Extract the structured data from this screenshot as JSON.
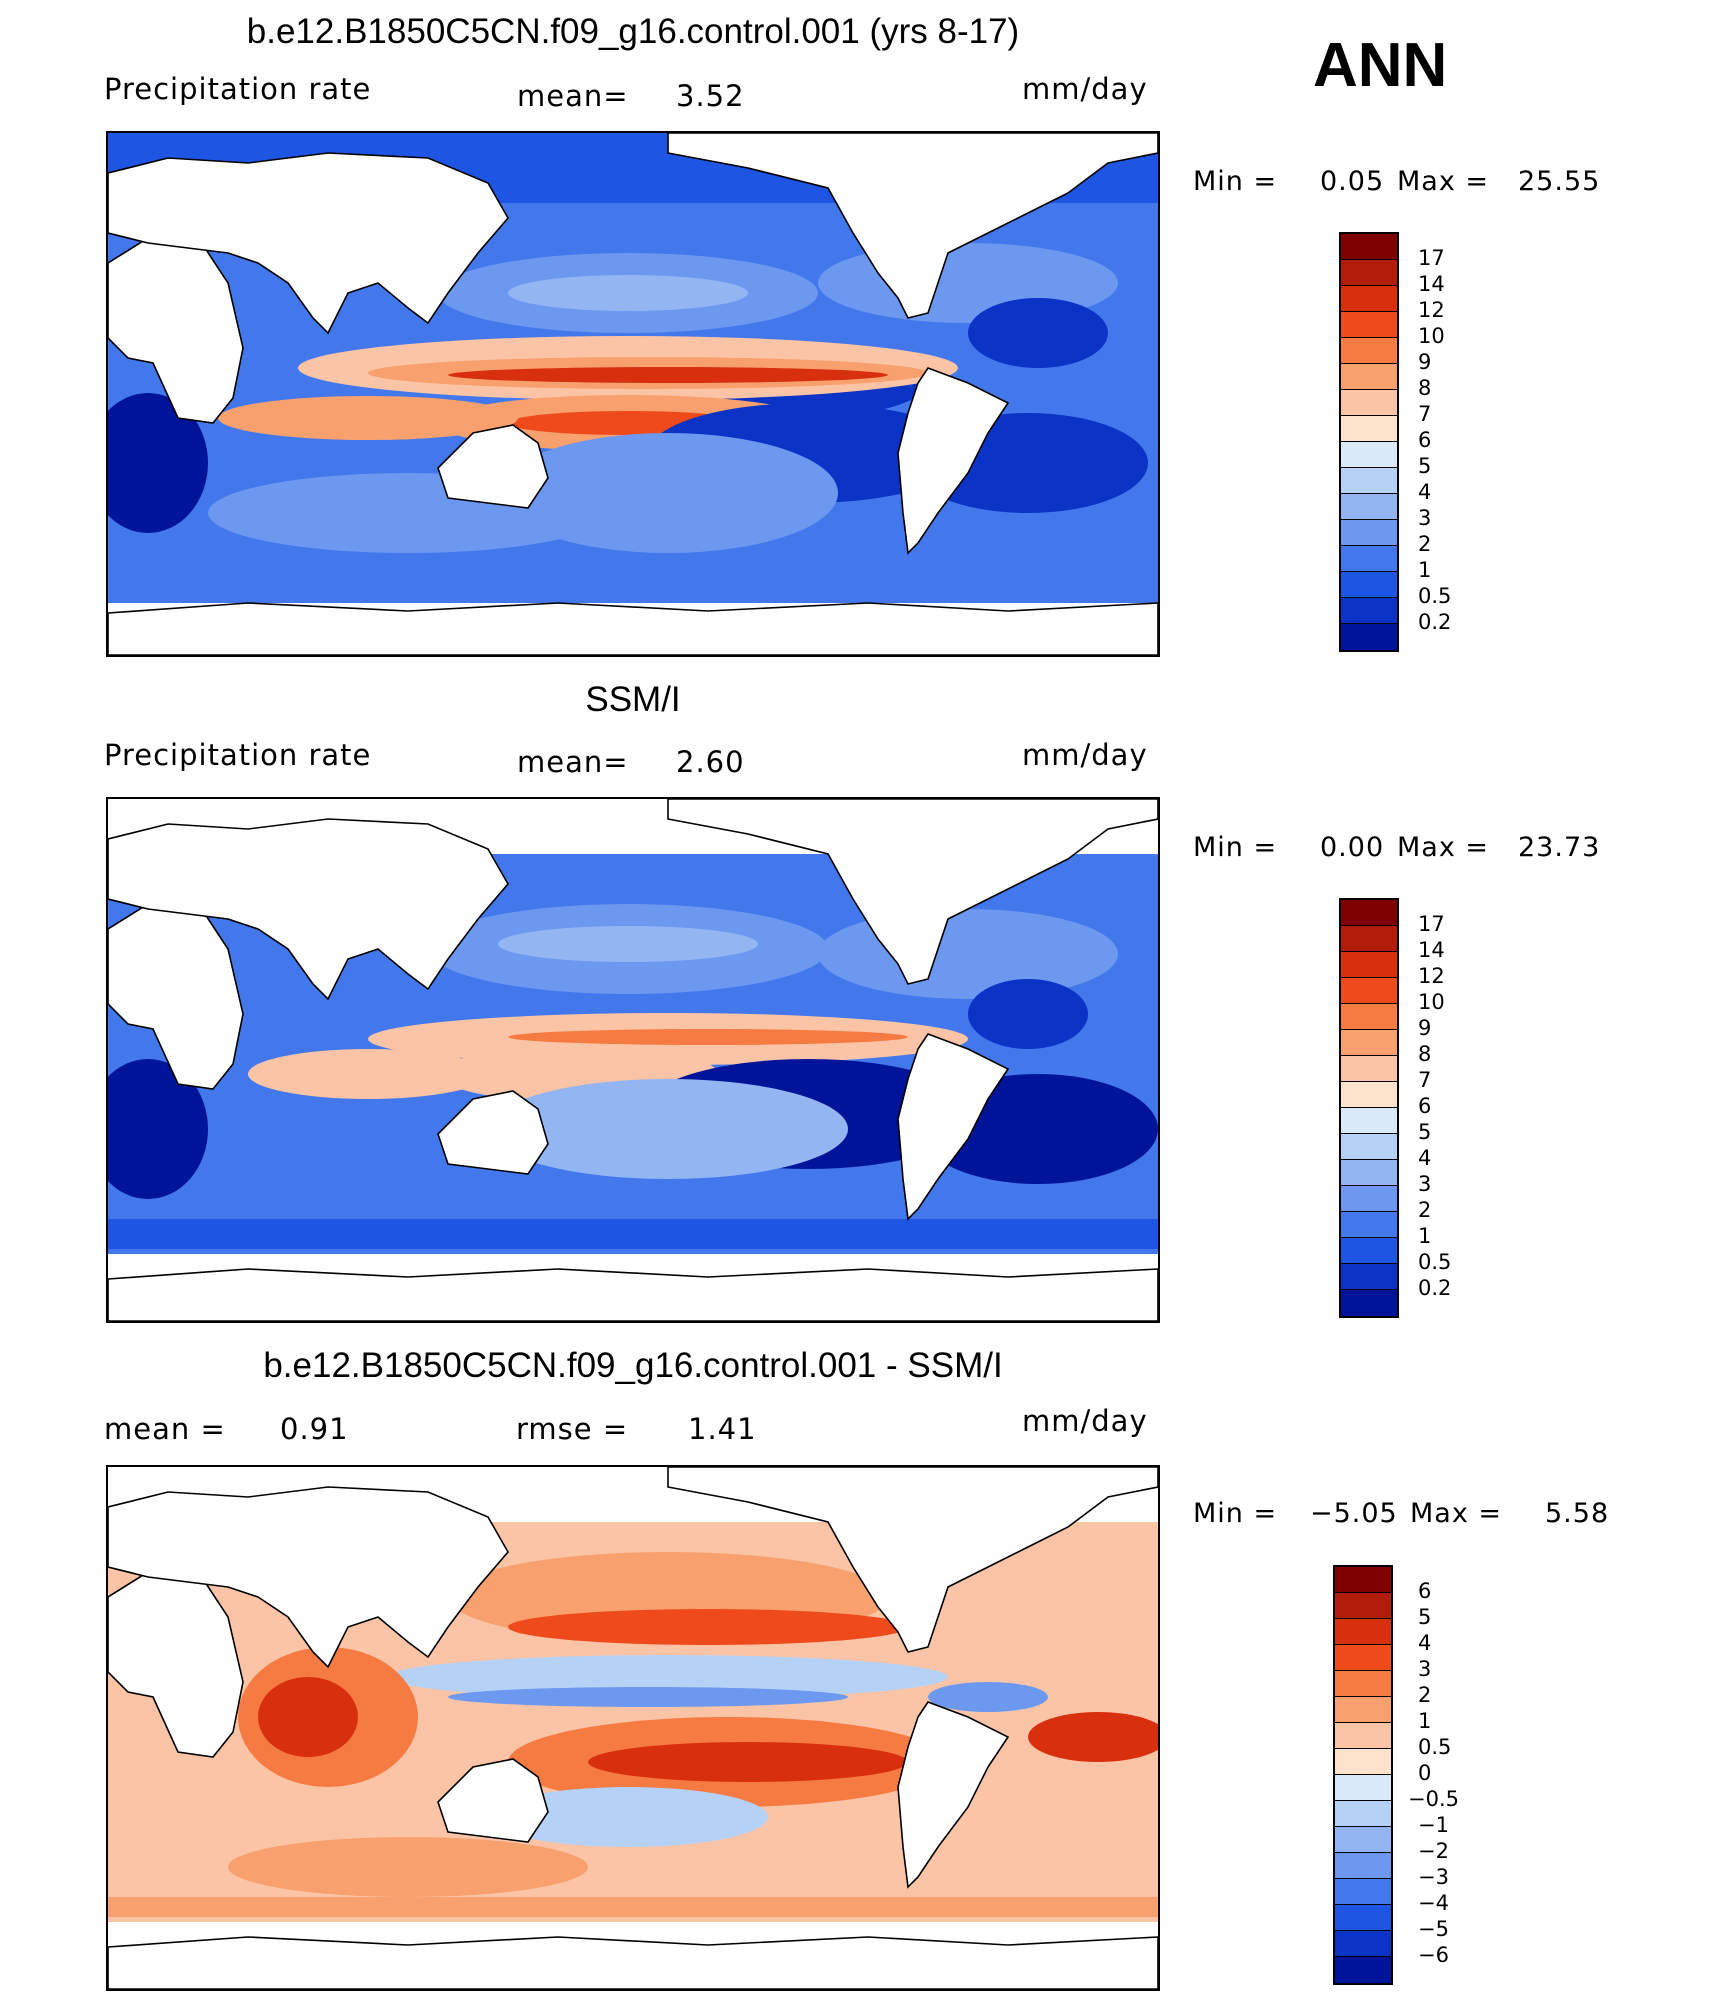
{
  "season": "ANN",
  "panels": [
    {
      "id": "model",
      "title": "b.e12.B1850C5CN.f09_g16.control.001 (yrs 8-17)",
      "left_label": "Precipitation rate",
      "mean_label": "mean=",
      "mean_value": "3.52",
      "units": "mm/day",
      "min_label": "Min =",
      "min_value": "0.05",
      "max_label": "Max =",
      "max_value": "25.55",
      "contour_levels": [
        "17",
        "14",
        "12",
        "10",
        "9",
        "8",
        "7",
        "6",
        "5",
        "4",
        "3",
        "2",
        "1",
        "0.5",
        "0.2"
      ],
      "colors": [
        "#7f0000",
        "#b21d0b",
        "#d8300f",
        "#ee4a1c",
        "#f67b42",
        "#f8a06e",
        "#fbc4a6",
        "#fde3cc",
        "#d9e9f9",
        "#b6d1f6",
        "#93b6f3",
        "#6d98f0",
        "#4378ec",
        "#1e56e3",
        "#0b33c6",
        "#00149a"
      ]
    },
    {
      "id": "obs",
      "title": "SSM/I",
      "left_label": "Precipitation rate",
      "mean_label": "mean=",
      "mean_value": "2.60",
      "units": "mm/day",
      "min_label": "Min =",
      "min_value": "0.00",
      "max_label": "Max =",
      "max_value": "23.73",
      "contour_levels": [
        "17",
        "14",
        "12",
        "10",
        "9",
        "8",
        "7",
        "6",
        "5",
        "4",
        "3",
        "2",
        "1",
        "0.5",
        "0.2"
      ],
      "colors": [
        "#7f0000",
        "#b21d0b",
        "#d8300f",
        "#ee4a1c",
        "#f67b42",
        "#f8a06e",
        "#fbc4a6",
        "#fde3cc",
        "#d9e9f9",
        "#b6d1f6",
        "#93b6f3",
        "#6d98f0",
        "#4378ec",
        "#1e56e3",
        "#0b33c6",
        "#00149a"
      ]
    },
    {
      "id": "diff",
      "title": "b.e12.B1850C5CN.f09_g16.control.001 - SSM/I",
      "left_label": "mean =",
      "left_value": "0.91",
      "rmse_label": "rmse =",
      "rmse_value": "1.41",
      "units": "mm/day",
      "min_label": "Min =",
      "min_value": "−5.05",
      "max_label": "Max =",
      "max_value": "5.58",
      "contour_levels": [
        "6",
        "5",
        "4",
        "3",
        "2",
        "1",
        "0.5",
        "0",
        "−0.5",
        "−1",
        "−2",
        "−3",
        "−4",
        "−5",
        "−6"
      ],
      "colors": [
        "#7f0000",
        "#b21d0b",
        "#d8300f",
        "#ee4a1c",
        "#f67b42",
        "#f8a06e",
        "#fbc4a6",
        "#fde3cc",
        "#d9e9f9",
        "#b6d1f6",
        "#93b6f3",
        "#6d98f0",
        "#4378ec",
        "#1e56e3",
        "#0b33c6",
        "#00149a"
      ]
    }
  ]
}
